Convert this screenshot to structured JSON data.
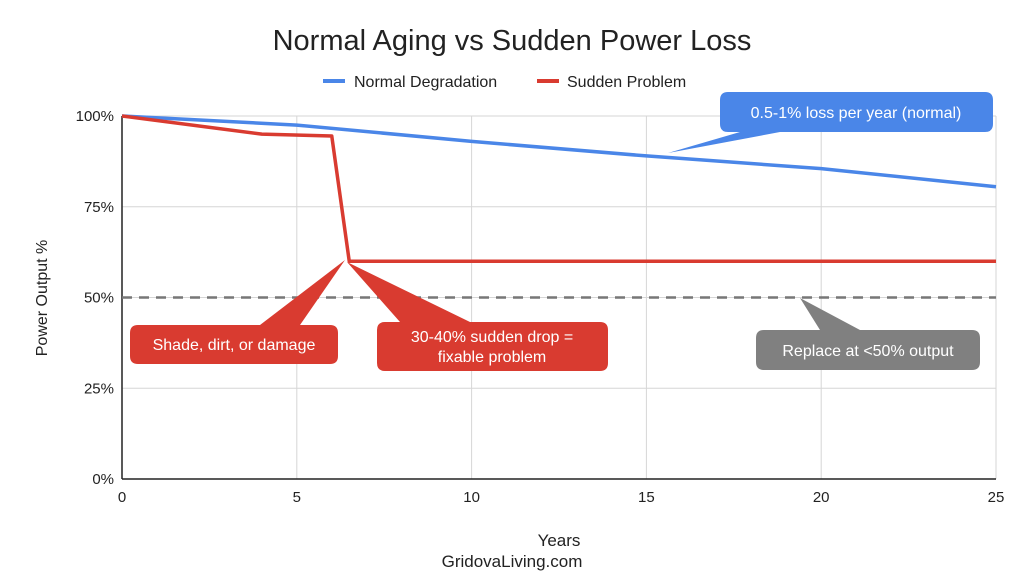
{
  "chart_data": {
    "type": "line",
    "title": "Normal Aging vs Sudden Power Loss",
    "xlabel": "Years",
    "ylabel": "Power Output %",
    "xlim": [
      0,
      25
    ],
    "ylim": [
      0,
      100
    ],
    "x_ticks": [
      "0",
      "5",
      "10",
      "15",
      "20",
      "25"
    ],
    "y_ticks": [
      "0%",
      "25%",
      "50%",
      "75%",
      "100%"
    ],
    "grid": true,
    "legend_position": "top",
    "series": [
      {
        "name": "Normal Degradation",
        "color": "#4a86e8",
        "points": [
          [
            0,
            100
          ],
          [
            5,
            97.5
          ],
          [
            10,
            93
          ],
          [
            15,
            89
          ],
          [
            20,
            85.5
          ],
          [
            25,
            80.5
          ]
        ]
      },
      {
        "name": "Sudden Problem",
        "color": "#d93b30",
        "points": [
          [
            0,
            100
          ],
          [
            4,
            95
          ],
          [
            6,
            94.5
          ],
          [
            6.5,
            60
          ],
          [
            25,
            60
          ]
        ]
      }
    ],
    "reference_line": {
      "y": 50,
      "style": "dashed",
      "color": "#777777"
    },
    "annotations": [
      {
        "text": "0.5-1% loss per year (normal)",
        "color": "#4a86e8"
      },
      {
        "text": "Shade, dirt, or damage",
        "color": "#d93b30"
      },
      {
        "lines": [
          "30-40% sudden drop =",
          "fixable problem"
        ],
        "color": "#d93b30"
      },
      {
        "text": "Replace at <50% output",
        "color": "#808080"
      }
    ],
    "source": "GridovaLiving.com"
  }
}
